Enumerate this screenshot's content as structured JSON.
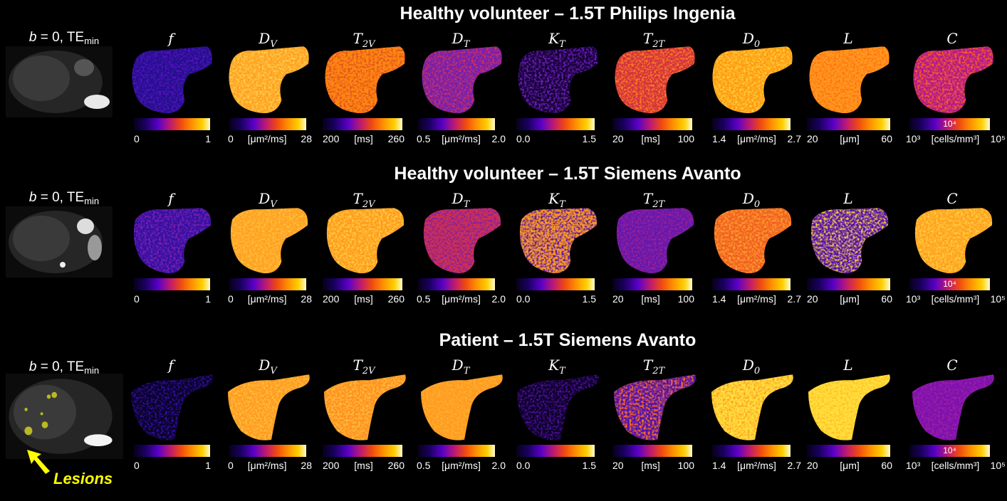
{
  "rows": [
    {
      "title": "Healthy volunteer – 1.5T Philips Ingenia",
      "anatomy_label": {
        "b": "b",
        "rest": " = 0, TE",
        "sub": "min"
      },
      "map_colors": [
        [
          "#20108a",
          "#5a10c0"
        ],
        [
          "#ffa020",
          "#ffd050"
        ],
        [
          "#ff8a10",
          "#e05020"
        ],
        [
          "#7020b0",
          "#d03060"
        ],
        [
          "#120030",
          "#7020c0"
        ],
        [
          "#d03040",
          "#ff8020"
        ],
        [
          "#ff9a10",
          "#ffd040"
        ],
        [
          "#ff9a20",
          "#ff7010"
        ],
        [
          "#b01890",
          "#ff6020"
        ]
      ]
    },
    {
      "title": "Healthy volunteer – 1.5T Siemens Avanto",
      "anatomy_label": {
        "b": "b",
        "rest": " = 0, TE",
        "sub": "min"
      },
      "map_colors": [
        [
          "#3010a0",
          "#8020b0"
        ],
        [
          "#ffa020",
          "#ffc040"
        ],
        [
          "#ff9a20",
          "#ffd040"
        ],
        [
          "#d03050",
          "#8020a0"
        ],
        [
          "#ff9a20",
          "#5010b0"
        ],
        [
          "#6018b0",
          "#a02090"
        ],
        [
          "#f06020",
          "#ffa030"
        ],
        [
          "#5010b0",
          "#ffd040"
        ],
        [
          "#ffa020",
          "#ffd040"
        ]
      ]
    },
    {
      "title": "Patient – 1.5T Siemens Avanto",
      "anatomy_label": {
        "b": "b",
        "rest": " = 0, TE",
        "sub": "min"
      },
      "lesions_label": "Lesions",
      "map_colors": [
        [
          "#080020",
          "#3010a0"
        ],
        [
          "#ff9a20",
          "#ffc040"
        ],
        [
          "#ff9020",
          "#ffc040"
        ],
        [
          "#ff9a20",
          "#ffb030"
        ],
        [
          "#080020",
          "#5010a0"
        ],
        [
          "#5010b0",
          "#ff7020"
        ],
        [
          "#ffe040",
          "#ffa020"
        ],
        [
          "#ffe040",
          "#ffc020"
        ],
        [
          "#7a10b0",
          "#a020a0"
        ]
      ]
    }
  ],
  "parameters": [
    {
      "base": "f",
      "sub": ""
    },
    {
      "base": "D",
      "sub": "V"
    },
    {
      "base": "T",
      "sub": "2V"
    },
    {
      "base": "D",
      "sub": "T"
    },
    {
      "base": "K",
      "sub": "T"
    },
    {
      "base": "T",
      "sub": "2T"
    },
    {
      "base": "D",
      "sub": "0"
    },
    {
      "base": "L",
      "sub": ""
    },
    {
      "base": "C",
      "sub": ""
    }
  ],
  "colorbars": [
    {
      "min": "0",
      "unit": "",
      "max": "1",
      "mid": ""
    },
    {
      "min": "0",
      "unit": "[μm²/ms]",
      "max": "28",
      "mid": ""
    },
    {
      "min": "200",
      "unit": "[ms]",
      "max": "260",
      "mid": ""
    },
    {
      "min": "0.5",
      "unit": "[μm²/ms]",
      "max": "2.0",
      "mid": ""
    },
    {
      "min": "0.0",
      "unit": "",
      "max": "1.5",
      "mid": ""
    },
    {
      "min": "20",
      "unit": "[ms]",
      "max": "100",
      "mid": ""
    },
    {
      "min": "1.4",
      "unit": "[μm²/ms]",
      "max": "2.7",
      "mid": ""
    },
    {
      "min": "20",
      "unit": "[μm]",
      "max": "60",
      "mid": ""
    },
    {
      "min": "10³",
      "unit": "[cells/mm³]",
      "max": "10⁵",
      "mid": "10⁴"
    }
  ]
}
